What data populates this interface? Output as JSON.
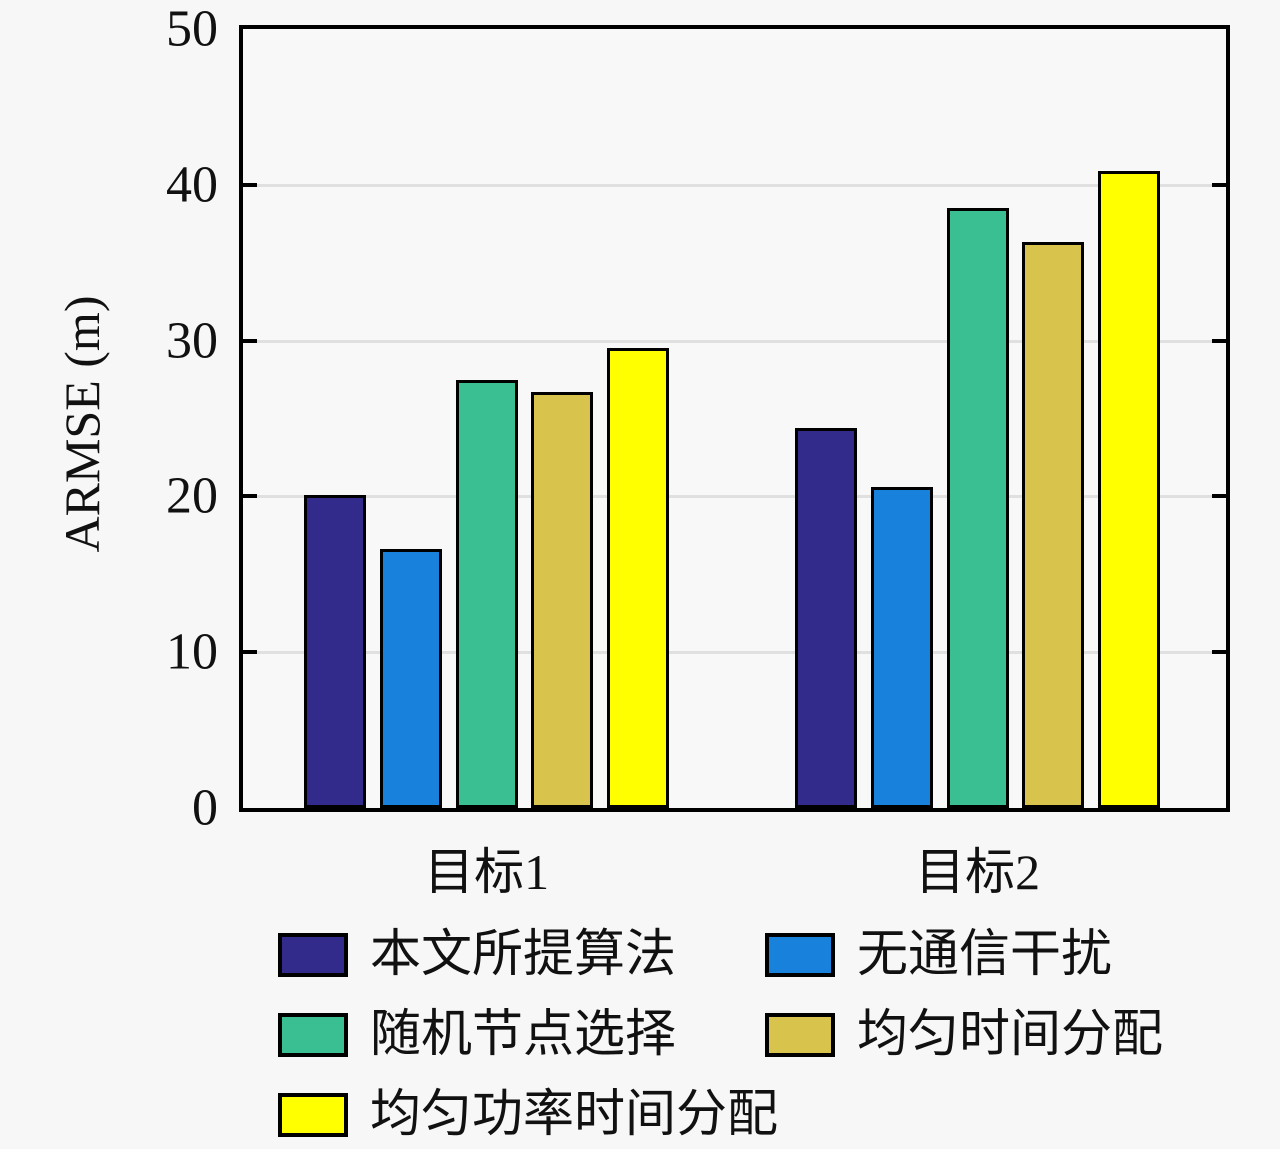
{
  "chart_data": {
    "type": "bar",
    "title": "",
    "ylabel": "ARMSE (m)",
    "xlabel": "",
    "ylim": [
      0,
      50
    ],
    "yticks": [
      0,
      10,
      20,
      30,
      40,
      50
    ],
    "grid": true,
    "legend_position": "bottom",
    "categories": [
      "目标1",
      "目标2"
    ],
    "series": [
      {
        "name": "本文所提算法",
        "color": "#332b8c",
        "values": [
          20.1,
          24.4
        ]
      },
      {
        "name": "无通信干扰",
        "color": "#1881db",
        "values": [
          16.6,
          20.6
        ]
      },
      {
        "name": "随机节点选择",
        "color": "#3abf92",
        "values": [
          27.5,
          38.5
        ]
      },
      {
        "name": "均匀时间分配",
        "color": "#d8c44c",
        "values": [
          26.7,
          36.3
        ]
      },
      {
        "name": "均匀功率时间分配",
        "color": "#ffff00",
        "values": [
          29.5,
          40.9
        ]
      }
    ],
    "colors": {
      "axis": "#000000",
      "gridline": "#e0e0e0",
      "background": "#f7f7f7",
      "text": "#111111"
    }
  }
}
